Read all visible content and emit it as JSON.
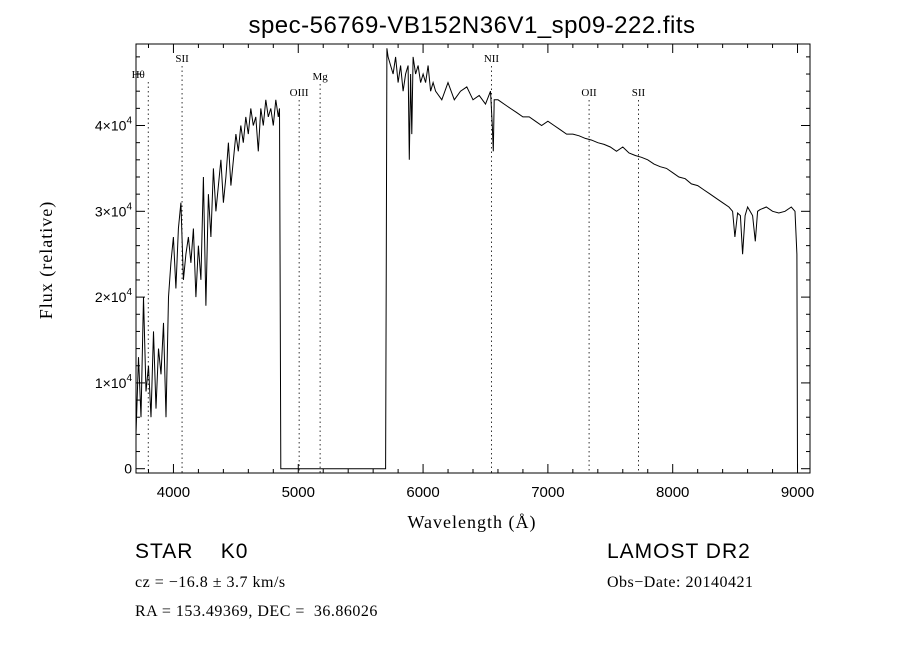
{
  "chart_data": {
    "type": "line",
    "title": "spec-56769-VB152N36V1_sp09-222.fits",
    "xlabel": "Wavelength (Å)",
    "ylabel": "Flux (relative)",
    "xlim": [
      3700,
      9100
    ],
    "ylim": [
      -500,
      49500
    ],
    "x_ticks": [
      4000,
      5000,
      6000,
      7000,
      8000,
      9000
    ],
    "x_tick_labels": [
      "4000",
      "5000",
      "6000",
      "7000",
      "8000",
      "9000"
    ],
    "y_ticks": [
      0,
      10000,
      20000,
      30000,
      40000
    ],
    "y_tick_labels": [
      {
        "mantissa": "0",
        "exp": ""
      },
      {
        "mantissa": "1×10",
        "exp": "4"
      },
      {
        "mantissa": "2×10",
        "exp": "4"
      },
      {
        "mantissa": "3×10",
        "exp": "4"
      },
      {
        "mantissa": "4×10",
        "exp": "4"
      }
    ],
    "grid": false,
    "series": [
      {
        "x": [
          3700,
          3720,
          3740,
          3760,
          3780,
          3800,
          3820,
          3840,
          3860,
          3880,
          3900,
          3920,
          3940,
          3960,
          3980,
          4000,
          4020,
          4040,
          4060,
          4080,
          4100,
          4120,
          4140,
          4160,
          4180,
          4200,
          4220,
          4240,
          4260,
          4280,
          4300,
          4320,
          4340,
          4360,
          4380,
          4400,
          4420,
          4440,
          4460,
          4480,
          4500,
          4520,
          4540,
          4560,
          4580,
          4600,
          4620,
          4640,
          4660,
          4680,
          4700,
          4720,
          4740,
          4760,
          4780,
          4800,
          4820,
          4840,
          4850,
          4855,
          4860,
          5700,
          5705,
          5710,
          5720,
          5740,
          5760,
          5780,
          5800,
          5820,
          5840,
          5860,
          5880,
          5890,
          5900,
          5910,
          5920,
          5940,
          5960,
          5980,
          6000,
          6020,
          6040,
          6060,
          6080,
          6100,
          6150,
          6200,
          6250,
          6300,
          6350,
          6400,
          6450,
          6500,
          6540,
          6555,
          6563,
          6570,
          6600,
          6650,
          6700,
          6750,
          6800,
          6850,
          6900,
          6950,
          7000,
          7050,
          7100,
          7150,
          7200,
          7250,
          7300,
          7350,
          7400,
          7450,
          7500,
          7550,
          7600,
          7650,
          7700,
          7750,
          7800,
          7850,
          7900,
          7950,
          8000,
          8050,
          8100,
          8150,
          8200,
          8250,
          8300,
          8350,
          8400,
          8450,
          8480,
          8498,
          8520,
          8542,
          8560,
          8580,
          8600,
          8620,
          8640,
          8662,
          8680,
          8700,
          8750,
          8800,
          8850,
          8900,
          8950,
          8980,
          8995,
          9000
        ],
        "y": [
          4000,
          13000,
          6000,
          20000,
          9000,
          12000,
          6000,
          16000,
          7000,
          14000,
          11000,
          17000,
          6000,
          20000,
          24000,
          27000,
          21000,
          28000,
          31000,
          22000,
          25000,
          27000,
          24000,
          28000,
          20000,
          26000,
          22000,
          34000,
          19000,
          32000,
          27000,
          35000,
          30000,
          33000,
          36000,
          31000,
          34000,
          38000,
          33000,
          36000,
          39000,
          37000,
          40000,
          38000,
          41000,
          39000,
          42000,
          40000,
          41000,
          37000,
          42000,
          40000,
          43000,
          41000,
          42000,
          40000,
          43000,
          41000,
          42000,
          20000,
          0,
          0,
          25000,
          49000,
          48000,
          47000,
          46000,
          48000,
          45000,
          47000,
          44000,
          46000,
          47000,
          36000,
          46000,
          39000,
          48000,
          46000,
          47000,
          45000,
          46000,
          45000,
          47000,
          44000,
          45000,
          44000,
          43000,
          45000,
          43000,
          44000,
          44500,
          43000,
          43500,
          42500,
          44000,
          40000,
          37000,
          43000,
          43000,
          42500,
          42000,
          41500,
          41000,
          41000,
          40500,
          40000,
          40500,
          40000,
          39500,
          39000,
          39000,
          38800,
          38500,
          38300,
          38000,
          37800,
          37500,
          37000,
          37500,
          36800,
          36500,
          36300,
          36000,
          35500,
          35200,
          35000,
          34500,
          34000,
          33800,
          33200,
          33000,
          32500,
          32000,
          31500,
          31000,
          30500,
          30000,
          27000,
          29800,
          29500,
          25000,
          29500,
          30500,
          30000,
          29500,
          26500,
          30000,
          30200,
          30500,
          30000,
          29800,
          30000,
          30500,
          30000,
          25000,
          0
        ]
      }
    ],
    "lines": [
      {
        "label": "Hθ",
        "x": 3798
      },
      {
        "label": "SII",
        "x": 4069
      },
      {
        "label": "OIII",
        "x": 5007
      },
      {
        "label": "Mg",
        "x": 5175
      },
      {
        "label": "NII",
        "x": 6548
      },
      {
        "label": "OII",
        "x": 7330
      },
      {
        "label": "SII",
        "x": 7726
      }
    ]
  },
  "info": {
    "object": "STAR    K0",
    "survey": "LAMOST DR2",
    "redshift": "cz = −16.8 ± 3.7 km/s",
    "obs_date": "Obs−Date: 20140421",
    "coords": "RA = 153.49369, DEC =  36.86026"
  }
}
